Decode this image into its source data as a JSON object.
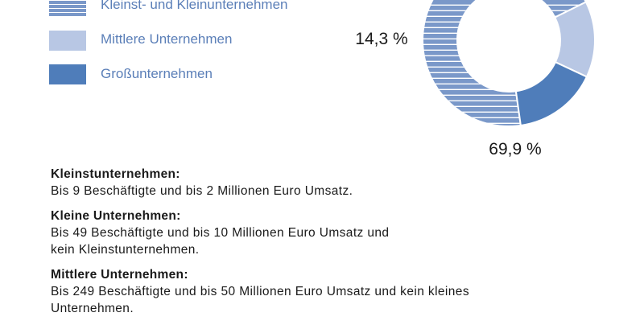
{
  "chart_data": {
    "type": "pie",
    "donut": true,
    "series": [
      {
        "name": "Kleinst- und Kleinunternehmen",
        "value": 69.9,
        "label": "69,9 %",
        "color": "#7a98c9",
        "pattern": "horizontal-stripes"
      },
      {
        "name": "Mittlere Unternehmen",
        "value": 14.3,
        "label": "14,3 %",
        "color": "#b8c7e4",
        "pattern": "solid"
      },
      {
        "name": "Großunternehmen",
        "value": 15.8,
        "label": "",
        "color": "#4f7dba",
        "pattern": "solid"
      }
    ]
  },
  "legend": {
    "items": [
      {
        "label": "Kleinst- und Kleinunternehmen"
      },
      {
        "label": "Mittlere Unternehmen"
      },
      {
        "label": "Großunternehmen"
      }
    ]
  },
  "definitions": [
    {
      "title": "Kleinstunternehmen:",
      "body": [
        "Bis 9 Beschäftigte und bis 2 Millionen Euro Umsatz."
      ]
    },
    {
      "title": "Kleine Unternehmen:",
      "body": [
        "Bis 49 Beschäftigte und bis 10 Millionen Euro Umsatz und",
        "kein Kleinstunternehmen."
      ]
    },
    {
      "title": "Mittlere Unternehmen:",
      "body": [
        "Bis 249 Beschäftigte und bis 50 Millionen Euro Umsatz und kein kleines",
        "Unternehmen."
      ]
    }
  ]
}
